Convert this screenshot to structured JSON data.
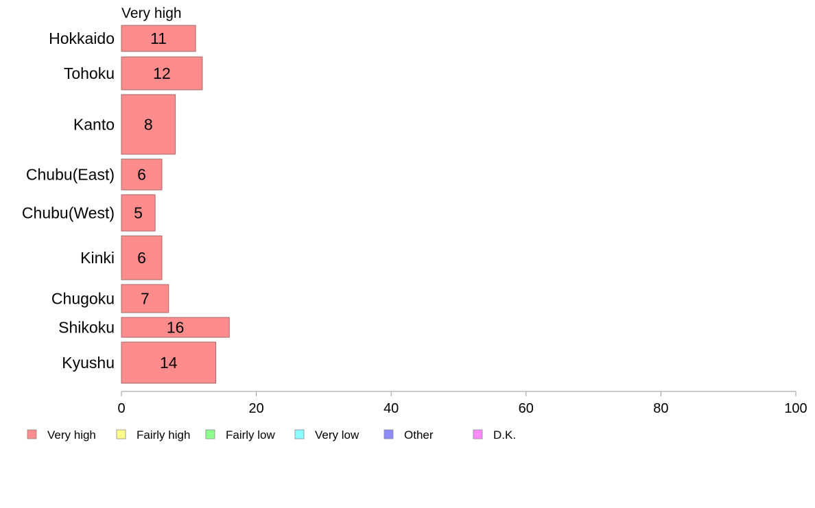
{
  "chart_data": {
    "type": "bar",
    "orientation": "horizontal",
    "panel_title": "Very high",
    "categories": [
      "Hokkaido",
      "Tohoku",
      "Kanto",
      "Chubu(East)",
      "Chubu(West)",
      "Kinki",
      "Chugoku",
      "Shikoku",
      "Kyushu"
    ],
    "series": [
      {
        "name": "Very high",
        "values": [
          11,
          12,
          8,
          6,
          5,
          6,
          7,
          16,
          14
        ],
        "color": "#ff8c8c"
      }
    ],
    "xlim": [
      0,
      100
    ],
    "xticks": [
      "0",
      "20",
      "40",
      "60",
      "80",
      "100"
    ],
    "grid": false,
    "legend": {
      "position": "bottom",
      "entries": [
        {
          "label": "Very high",
          "color": "#ff8c8c"
        },
        {
          "label": "Fairly high",
          "color": "#ffff8c"
        },
        {
          "label": "Fairly low",
          "color": "#8cff8c"
        },
        {
          "label": "Very low",
          "color": "#8cffff"
        },
        {
          "label": "Other",
          "color": "#8c8cff"
        },
        {
          "label": "D.K.",
          "color": "#ff8cff"
        }
      ]
    }
  }
}
